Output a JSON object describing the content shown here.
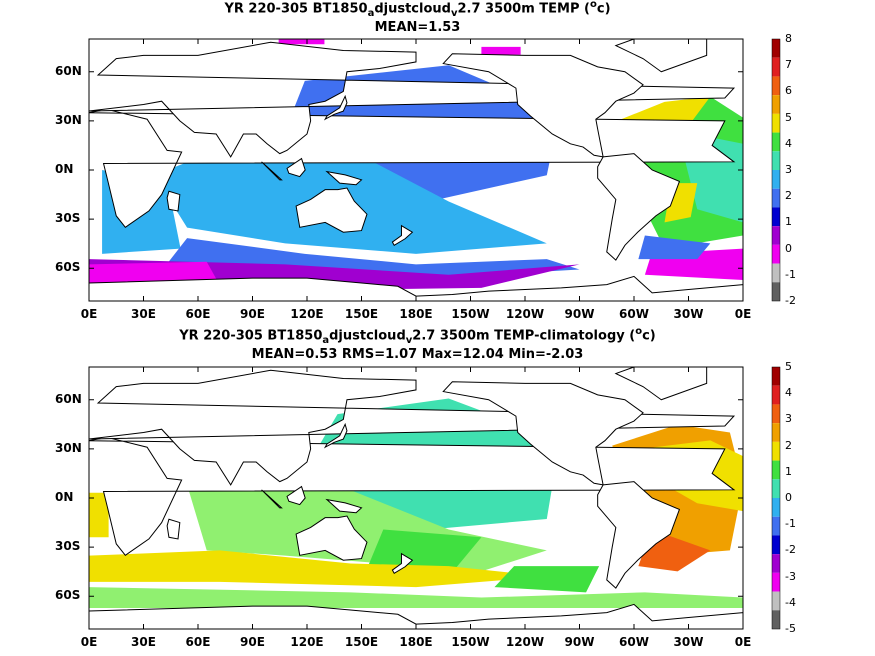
{
  "colors": {
    "ocean_fill": "#ffffff",
    "coast_line": "#000000",
    "frame": "#000000"
  },
  "top": {
    "title_prefix": "YR 220-305 BT1850",
    "title_sub_a": "a",
    "title_mid": "djustcloud",
    "title_sub_v": "v",
    "title_suffix_pre": "2.7 3500m TEMP (",
    "title_sup": "o",
    "title_suffix_post": "c)",
    "stats": "MEAN=1.53",
    "colorbar_labels": [
      "8",
      "7",
      "6",
      "5",
      "4",
      "3",
      "2",
      "1",
      "0",
      "-1",
      "-2"
    ],
    "colorbar_colors": [
      "#a00000",
      "#e02020",
      "#f06010",
      "#f0a000",
      "#f0e000",
      "#40e040",
      "#40e0b0",
      "#30b0f0",
      "#4070f0",
      "#0000d0",
      "#a000d0",
      "#f000f0",
      "#c0c0c0",
      "#606060"
    ]
  },
  "bottom": {
    "title_prefix": "YR 220-305 BT1850",
    "title_sub_a": "a",
    "title_mid": "djustcloud",
    "title_sub_v": "v",
    "title_suffix_pre": "2.7 3500m TEMP-climatology (",
    "title_sup": "o",
    "title_suffix_post": "c)",
    "stats": "MEAN=0.53   RMS=1.07   Max=12.04   Min=-2.03",
    "colorbar_labels": [
      "5",
      "4",
      "3",
      "2",
      "1",
      "0",
      "-1",
      "-2",
      "-3",
      "-4",
      "-5"
    ],
    "colorbar_colors": [
      "#a00000",
      "#e02020",
      "#f06010",
      "#f0a000",
      "#f0e000",
      "#40e040",
      "#40e0b0",
      "#30b0f0",
      "#4070f0",
      "#0000d0",
      "#a000d0",
      "#f000f0",
      "#c0c0c0",
      "#606060"
    ]
  },
  "lat_labels": [
    "60N",
    "30N",
    "0N",
    "30S",
    "60S"
  ],
  "lon_labels": [
    "0E",
    "30E",
    "60E",
    "90E",
    "120E",
    "150E",
    "180E",
    "150W",
    "120W",
    "90W",
    "60W",
    "30W",
    "0E"
  ]
}
